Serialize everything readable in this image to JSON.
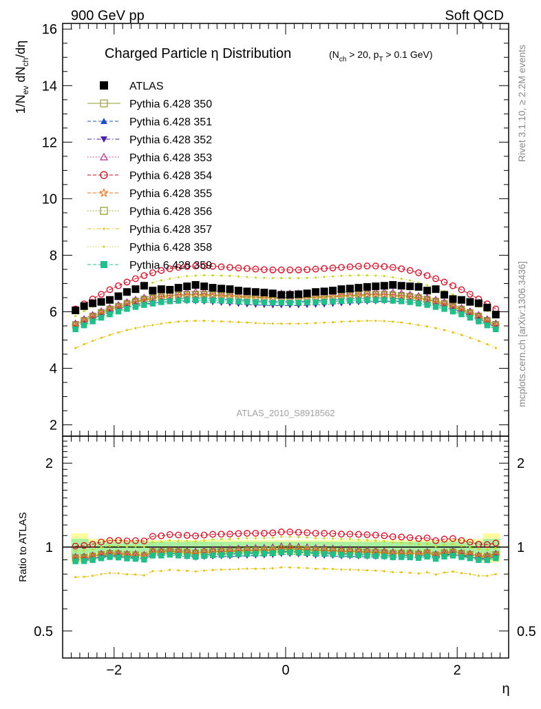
{
  "header": {
    "left": "900 GeV pp",
    "right": "Soft QCD"
  },
  "side_labels": {
    "rivet": "Rivet 3.1.10, ≥ 2.2M events",
    "mcplots": "mcplots.cern.ch [arXiv:1306.3436]"
  },
  "watermark": "ATLAS_2010_S8918562",
  "colors": {
    "atlas": "#000000",
    "p350": "#999933",
    "p351": "#1f4fcc",
    "p352": "#4b1fa8",
    "p353": "#b02a8f",
    "p354": "#e3001b",
    "p355": "#ef6c13",
    "p356": "#8f9a1d",
    "p357": "#e8c30f",
    "p358": "#c6d82b",
    "p359": "#1fbf8a",
    "band_yellow": "#fffca0",
    "band_green": "#a8f0a0"
  },
  "chart_data": [
    {
      "type": "scatter",
      "title": "Charged Particle η Distribution",
      "subtitle": "(N_ch > 20, p_T > 0.1 GeV)",
      "ylabel": "1/N_ev dN_ch/dη",
      "xlabel": "η",
      "xlim": [
        -2.6,
        2.6
      ],
      "ylim": [
        1.6,
        16.2
      ],
      "y_tick_labels": [
        "2",
        "4",
        "6",
        "8",
        "10",
        "12",
        "14",
        "16"
      ],
      "x_tick_labels": [
        "−2",
        "0",
        "2"
      ],
      "legend_position": "top-left",
      "x": [
        -2.45,
        -2.35,
        -2.25,
        -2.15,
        -2.05,
        -1.95,
        -1.85,
        -1.75,
        -1.65,
        -1.55,
        -1.45,
        -1.35,
        -1.25,
        -1.15,
        -1.05,
        -0.95,
        -0.85,
        -0.75,
        -0.65,
        -0.55,
        -0.45,
        -0.35,
        -0.25,
        -0.15,
        -0.05,
        0.05,
        0.15,
        0.25,
        0.35,
        0.45,
        0.55,
        0.65,
        0.75,
        0.85,
        0.95,
        1.05,
        1.15,
        1.25,
        1.35,
        1.45,
        1.55,
        1.65,
        1.75,
        1.85,
        1.95,
        2.05,
        2.15,
        2.25,
        2.35,
        2.45
      ],
      "series": [
        {
          "name": "ATLAS",
          "marker": "square-filled",
          "line": "none",
          "values": [
            6.05,
            6.2,
            6.3,
            6.35,
            6.42,
            6.55,
            6.7,
            6.8,
            6.92,
            6.75,
            6.8,
            6.78,
            6.85,
            6.9,
            6.95,
            6.9,
            6.85,
            6.82,
            6.8,
            6.75,
            6.72,
            6.7,
            6.68,
            6.65,
            6.6,
            6.6,
            6.62,
            6.65,
            6.7,
            6.72,
            6.75,
            6.8,
            6.82,
            6.85,
            6.88,
            6.9,
            6.92,
            6.95,
            6.92,
            6.9,
            6.88,
            6.75,
            6.8,
            6.6,
            6.45,
            6.42,
            6.35,
            6.3,
            6.15,
            5.9
          ]
        },
        {
          "name": "Pythia 6.428 350",
          "marker": "square-open",
          "line": "solid",
          "values": [
            5.55,
            5.7,
            5.85,
            5.98,
            6.1,
            6.2,
            6.3,
            6.38,
            6.45,
            6.5,
            6.55,
            6.58,
            6.6,
            6.62,
            6.62,
            6.62,
            6.6,
            6.58,
            6.57,
            6.55,
            6.53,
            6.52,
            6.5,
            6.5,
            6.5,
            6.5,
            6.5,
            6.5,
            6.52,
            6.53,
            6.55,
            6.57,
            6.58,
            6.6,
            6.62,
            6.62,
            6.62,
            6.6,
            6.58,
            6.55,
            6.5,
            6.45,
            6.38,
            6.3,
            6.2,
            6.1,
            5.98,
            5.85,
            5.7,
            5.55
          ]
        },
        {
          "name": "Pythia 6.428 351",
          "marker": "triangle-up",
          "line": "dashed",
          "values": [
            5.45,
            5.6,
            5.75,
            5.88,
            6.0,
            6.1,
            6.2,
            6.27,
            6.33,
            6.38,
            6.42,
            6.45,
            6.47,
            6.48,
            6.48,
            6.48,
            6.47,
            6.45,
            6.43,
            6.42,
            6.4,
            6.38,
            6.37,
            6.36,
            6.36,
            6.36,
            6.36,
            6.37,
            6.38,
            6.4,
            6.42,
            6.43,
            6.45,
            6.47,
            6.48,
            6.48,
            6.48,
            6.47,
            6.45,
            6.42,
            6.38,
            6.33,
            6.27,
            6.2,
            6.1,
            6.0,
            5.88,
            5.75,
            5.6,
            5.45
          ]
        },
        {
          "name": "Pythia 6.428 352",
          "marker": "triangle-down",
          "line": "dashdot",
          "values": [
            5.45,
            5.58,
            5.72,
            5.85,
            5.97,
            6.07,
            6.15,
            6.22,
            6.27,
            6.31,
            6.34,
            6.36,
            6.37,
            6.37,
            6.36,
            6.35,
            6.33,
            6.31,
            6.29,
            6.27,
            6.25,
            6.24,
            6.23,
            6.22,
            6.22,
            6.22,
            6.22,
            6.23,
            6.24,
            6.25,
            6.27,
            6.29,
            6.31,
            6.33,
            6.35,
            6.36,
            6.37,
            6.37,
            6.36,
            6.34,
            6.31,
            6.27,
            6.22,
            6.15,
            6.07,
            5.97,
            5.85,
            5.72,
            5.58,
            5.45
          ]
        },
        {
          "name": "Pythia 6.428 353",
          "marker": "triangle-open",
          "line": "dotted",
          "values": [
            5.6,
            5.75,
            5.9,
            6.03,
            6.15,
            6.25,
            6.35,
            6.44,
            6.51,
            6.57,
            6.62,
            6.66,
            6.69,
            6.71,
            6.72,
            6.72,
            6.72,
            6.71,
            6.7,
            6.69,
            6.68,
            6.67,
            6.66,
            6.66,
            6.66,
            6.66,
            6.66,
            6.66,
            6.67,
            6.68,
            6.69,
            6.7,
            6.71,
            6.72,
            6.72,
            6.72,
            6.71,
            6.69,
            6.66,
            6.62,
            6.57,
            6.51,
            6.44,
            6.35,
            6.25,
            6.15,
            6.03,
            5.9,
            5.75,
            5.6
          ]
        },
        {
          "name": "Pythia 6.428 354",
          "marker": "circle-open",
          "line": "dashed",
          "values": [
            6.1,
            6.28,
            6.45,
            6.62,
            6.78,
            6.92,
            7.05,
            7.17,
            7.28,
            7.38,
            7.46,
            7.52,
            7.57,
            7.6,
            7.62,
            7.62,
            7.61,
            7.59,
            7.57,
            7.55,
            7.53,
            7.51,
            7.49,
            7.48,
            7.48,
            7.48,
            7.48,
            7.49,
            7.51,
            7.53,
            7.55,
            7.57,
            7.59,
            7.61,
            7.62,
            7.62,
            7.6,
            7.57,
            7.52,
            7.46,
            7.38,
            7.28,
            7.17,
            7.05,
            6.92,
            6.78,
            6.62,
            6.45,
            6.28,
            6.1
          ]
        },
        {
          "name": "Pythia 6.428 355",
          "marker": "star-open",
          "line": "dashed",
          "values": [
            5.5,
            5.65,
            5.8,
            5.93,
            6.05,
            6.15,
            6.25,
            6.33,
            6.4,
            6.45,
            6.5,
            6.53,
            6.55,
            6.57,
            6.57,
            6.57,
            6.56,
            6.55,
            6.54,
            6.52,
            6.51,
            6.5,
            6.49,
            6.48,
            6.48,
            6.48,
            6.48,
            6.49,
            6.5,
            6.51,
            6.52,
            6.54,
            6.55,
            6.56,
            6.57,
            6.57,
            6.57,
            6.55,
            6.53,
            6.5,
            6.45,
            6.4,
            6.33,
            6.25,
            6.15,
            6.05,
            5.93,
            5.8,
            5.65,
            5.5
          ]
        },
        {
          "name": "Pythia 6.428 356",
          "marker": "square-open",
          "line": "dotted",
          "values": [
            5.52,
            5.67,
            5.82,
            5.95,
            6.07,
            6.17,
            6.27,
            6.35,
            6.42,
            6.48,
            6.52,
            6.55,
            6.58,
            6.6,
            6.6,
            6.6,
            6.59,
            6.58,
            6.56,
            6.55,
            6.53,
            6.52,
            6.51,
            6.5,
            6.5,
            6.5,
            6.5,
            6.51,
            6.52,
            6.53,
            6.55,
            6.56,
            6.58,
            6.59,
            6.6,
            6.6,
            6.6,
            6.58,
            6.55,
            6.52,
            6.48,
            6.42,
            6.35,
            6.27,
            6.17,
            6.07,
            5.95,
            5.82,
            5.67,
            5.52
          ]
        },
        {
          "name": "Pythia 6.428 357",
          "marker": "dot",
          "line": "dashdot",
          "values": [
            4.72,
            4.85,
            4.97,
            5.08,
            5.18,
            5.27,
            5.35,
            5.42,
            5.48,
            5.53,
            5.58,
            5.62,
            5.65,
            5.67,
            5.68,
            5.68,
            5.67,
            5.66,
            5.65,
            5.63,
            5.62,
            5.6,
            5.59,
            5.58,
            5.58,
            5.58,
            5.58,
            5.59,
            5.6,
            5.62,
            5.63,
            5.65,
            5.66,
            5.67,
            5.68,
            5.68,
            5.67,
            5.65,
            5.62,
            5.58,
            5.53,
            5.48,
            5.42,
            5.35,
            5.27,
            5.18,
            5.08,
            4.97,
            4.85,
            4.72
          ]
        },
        {
          "name": "Pythia 6.428 358",
          "marker": "dot",
          "line": "dotted",
          "values": [
            5.85,
            6.02,
            6.18,
            6.33,
            6.48,
            6.61,
            6.73,
            6.84,
            6.94,
            7.03,
            7.11,
            7.17,
            7.22,
            7.26,
            7.28,
            7.29,
            7.29,
            7.28,
            7.27,
            7.25,
            7.23,
            7.21,
            7.2,
            7.19,
            7.19,
            7.19,
            7.19,
            7.2,
            7.21,
            7.23,
            7.25,
            7.27,
            7.28,
            7.29,
            7.29,
            7.28,
            7.26,
            7.22,
            7.17,
            7.11,
            7.03,
            6.94,
            6.84,
            6.73,
            6.61,
            6.48,
            6.33,
            6.18,
            6.02,
            5.85
          ]
        },
        {
          "name": "Pythia 6.428 359",
          "marker": "square-filled",
          "line": "dashed",
          "values": [
            5.38,
            5.52,
            5.66,
            5.79,
            5.91,
            6.01,
            6.1,
            6.17,
            6.24,
            6.29,
            6.34,
            6.37,
            6.39,
            6.41,
            6.41,
            6.41,
            6.4,
            6.39,
            6.38,
            6.36,
            6.35,
            6.34,
            6.33,
            6.32,
            6.32,
            6.32,
            6.32,
            6.33,
            6.34,
            6.35,
            6.36,
            6.38,
            6.39,
            6.4,
            6.41,
            6.41,
            6.41,
            6.39,
            6.37,
            6.34,
            6.29,
            6.24,
            6.17,
            6.1,
            6.01,
            5.91,
            5.79,
            5.66,
            5.52,
            5.38
          ]
        }
      ]
    },
    {
      "type": "scatter",
      "ylabel": "Ratio to ATLAS",
      "xlabel": "η",
      "yscale": "log",
      "ylim": [
        0.4,
        2.5
      ],
      "xlim": [
        -2.6,
        2.6
      ],
      "y_tick_labels": [
        "0.5",
        "1",
        "2"
      ],
      "reference_line": 1,
      "uncertainty_band": "yellow (total) and green (statistical) bands around 1",
      "note": "ratios are each Pythia series divided by the ATLAS series"
    }
  ]
}
